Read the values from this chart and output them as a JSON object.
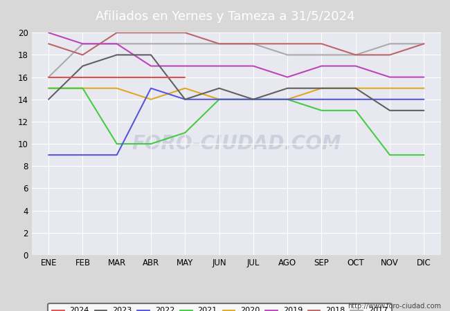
{
  "title": "Afiliados en Yernes y Tameza a 31/5/2024",
  "months": [
    "ENE",
    "FEB",
    "MAR",
    "ABR",
    "MAY",
    "JUN",
    "JUL",
    "AGO",
    "SEP",
    "OCT",
    "NOV",
    "DIC"
  ],
  "ylim": [
    0,
    20
  ],
  "yticks": [
    0,
    2,
    4,
    6,
    8,
    10,
    12,
    14,
    16,
    18,
    20
  ],
  "series": {
    "2024": {
      "color": "#e05050",
      "data": [
        16,
        16,
        16,
        16,
        16,
        null,
        null,
        null,
        null,
        null,
        null,
        null
      ]
    },
    "2023": {
      "color": "#606060",
      "data": [
        14,
        17,
        18,
        18,
        14,
        15,
        14,
        15,
        15,
        15,
        13,
        13
      ]
    },
    "2022": {
      "color": "#5555dd",
      "data": [
        9,
        9,
        9,
        15,
        14,
        14,
        14,
        14,
        14,
        14,
        14,
        14
      ]
    },
    "2021": {
      "color": "#44cc44",
      "data": [
        15,
        15,
        10,
        10,
        11,
        14,
        14,
        14,
        13,
        13,
        9,
        9
      ]
    },
    "2020": {
      "color": "#ddaa22",
      "data": [
        15,
        15,
        15,
        14,
        15,
        14,
        14,
        14,
        15,
        15,
        15,
        15
      ]
    },
    "2019": {
      "color": "#bb44bb",
      "data": [
        20,
        19,
        19,
        17,
        17,
        17,
        17,
        16,
        17,
        17,
        16,
        16
      ]
    },
    "2018": {
      "color": "#bb6666",
      "data": [
        19,
        18,
        20,
        20,
        20,
        19,
        19,
        19,
        19,
        18,
        18,
        19
      ]
    },
    "2017": {
      "color": "#aaaaaa",
      "data": [
        16,
        19,
        19,
        19,
        19,
        19,
        19,
        18,
        18,
        18,
        19,
        19
      ]
    }
  },
  "url": "http://www.foro-ciudad.com",
  "background_color": "#d8d8d8",
  "plot_background": "#e8e8f0",
  "title_bg": "#5b9bd5",
  "title_color": "white",
  "title_fontsize": 13,
  "watermark_text": "FORO-CIUDAD.COM",
  "watermark_color": "#c0c8d4",
  "grid_color": "white"
}
